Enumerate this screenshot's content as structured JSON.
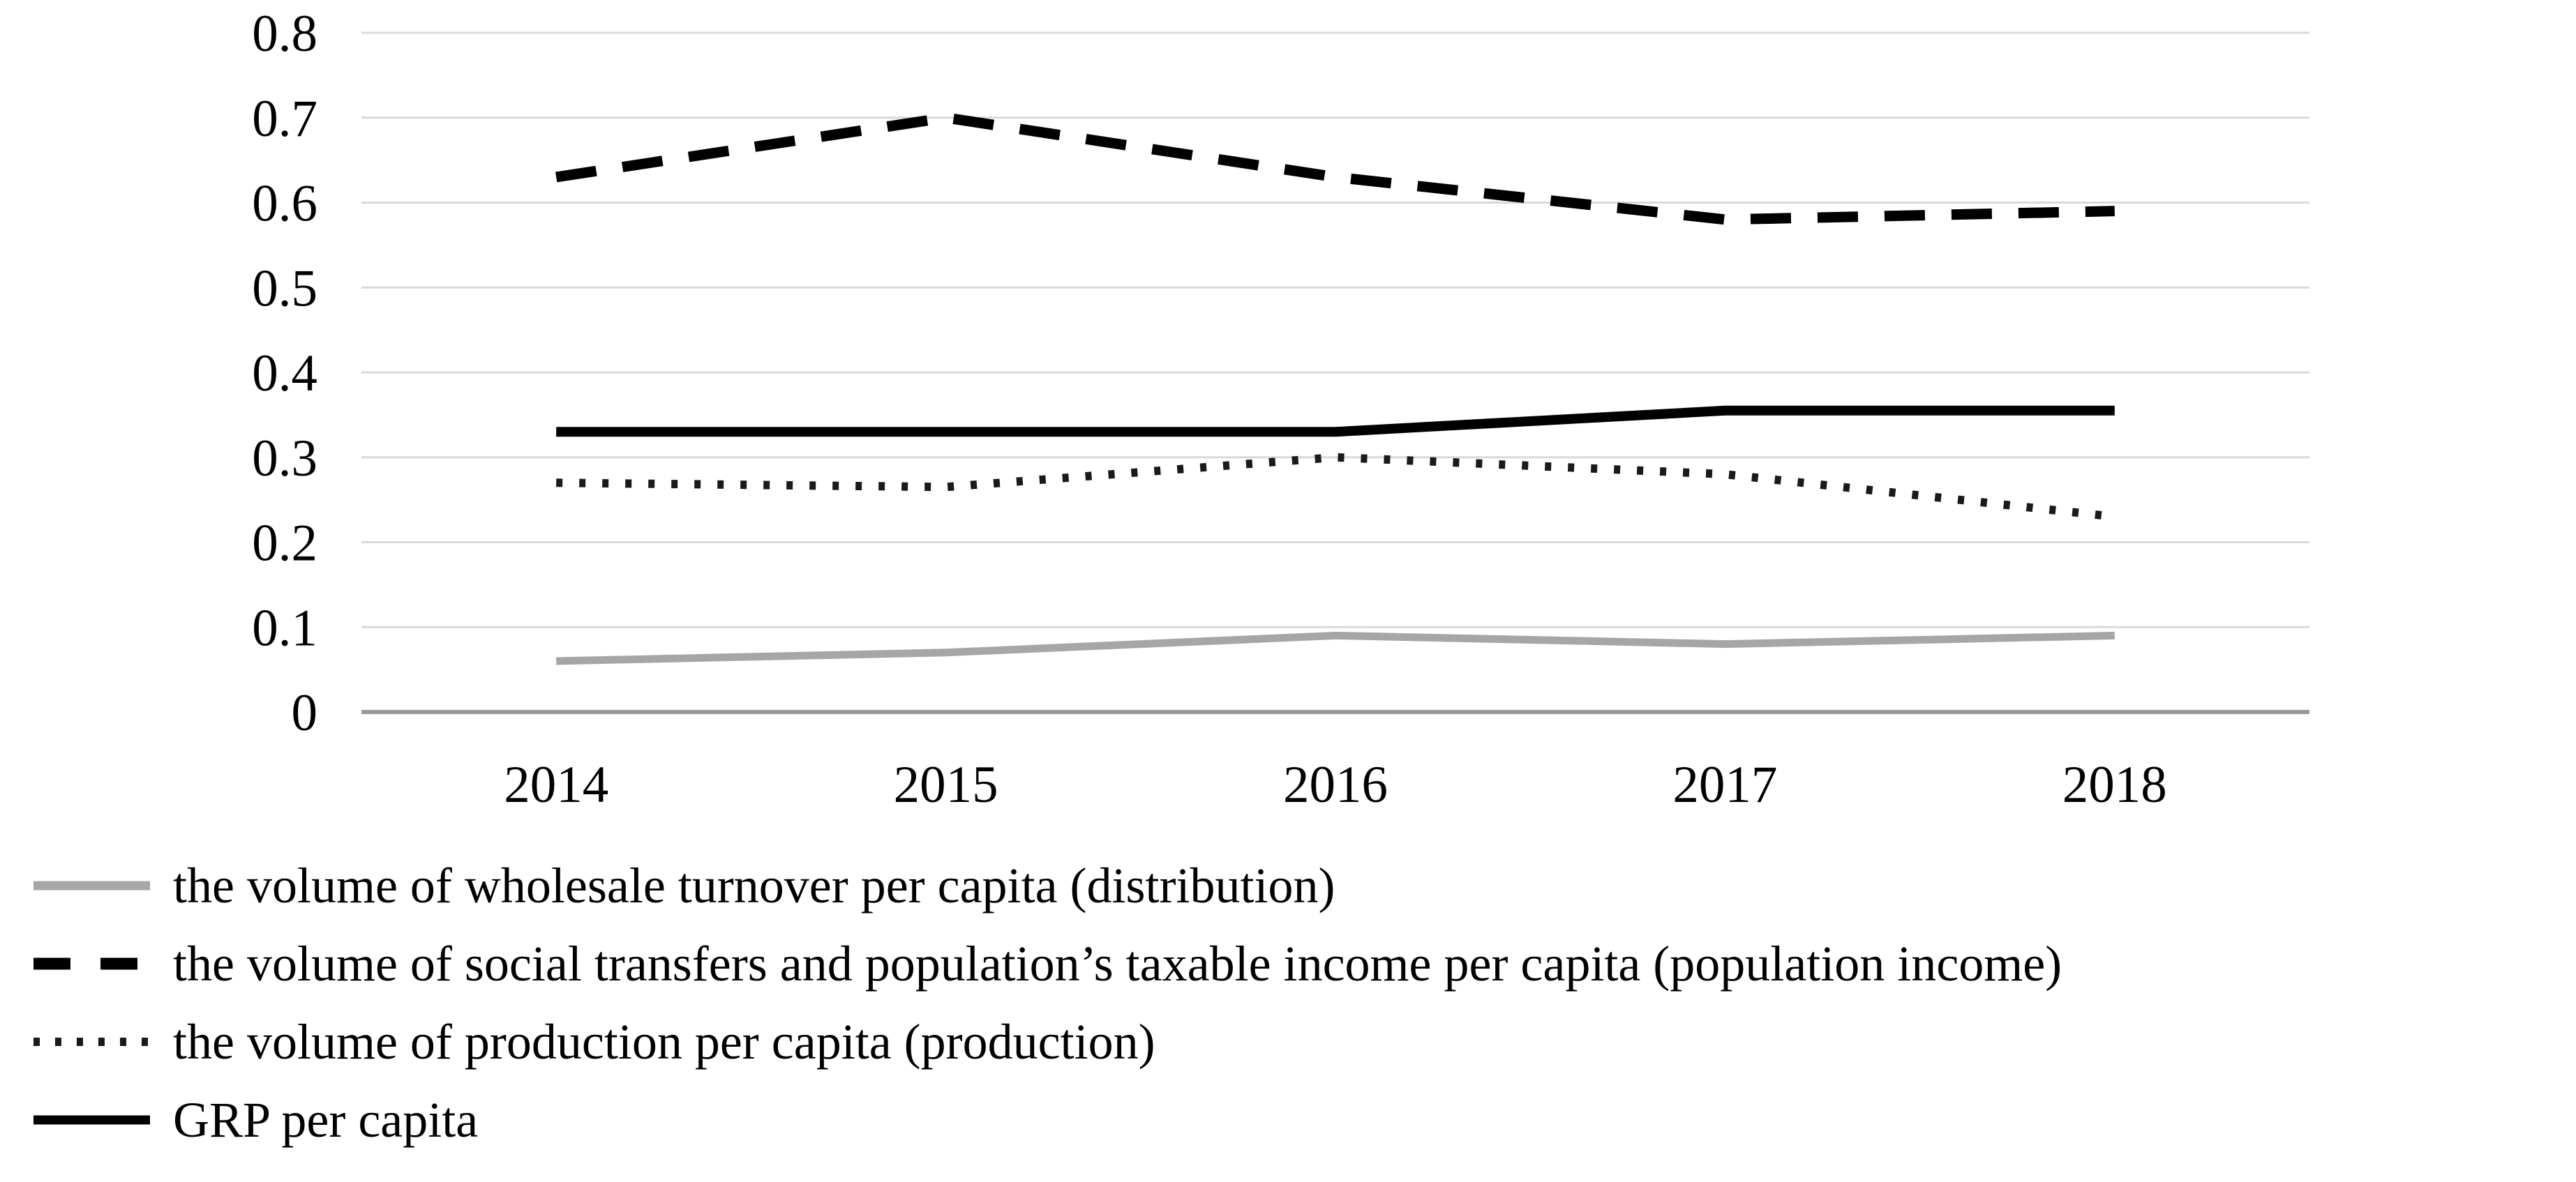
{
  "figure": {
    "background_color": "#ffffff",
    "gridline_color": "#d9d9d9",
    "axis_line_color": "#999999",
    "text_color": "#000000"
  },
  "chart_data": {
    "type": "line",
    "title": "",
    "xlabel": "",
    "ylabel": "",
    "categories": [
      "2014",
      "2015",
      "2016",
      "2017",
      "2018"
    ],
    "series": [
      {
        "name": "the volume of wholesale turnover per capita (distribution)",
        "values": [
          0.06,
          0.07,
          0.09,
          0.08,
          0.09
        ],
        "color": "#a6a6a6",
        "line_style": "solid",
        "stroke_width": 11
      },
      {
        "name": "the volume of social transfers and population’s taxable income per capita (population income)",
        "values": [
          0.63,
          0.7,
          0.63,
          0.58,
          0.59
        ],
        "color": "#000000",
        "line_style": "dashed",
        "stroke_width": 15
      },
      {
        "name": "the volume of production per capita (production)",
        "values": [
          0.27,
          0.265,
          0.3,
          0.28,
          0.23
        ],
        "color": "#1a1a1a",
        "line_style": "dotted",
        "stroke_width": 12
      },
      {
        "name": "GRP per capita",
        "values": [
          0.33,
          0.33,
          0.33,
          0.355,
          0.355
        ],
        "color": "#000000",
        "line_style": "solid",
        "stroke_width": 14
      }
    ],
    "ylim": [
      0,
      0.8
    ],
    "y_ticks": [
      "0.8",
      "0.7",
      "0.6",
      "0.5",
      "0.4",
      "0.3",
      "0.2",
      "0.1",
      "0"
    ],
    "y_tick_values": [
      0.8,
      0.7,
      0.6,
      0.5,
      0.4,
      0.3,
      0.2,
      0.1,
      0
    ],
    "grid": true,
    "legend_position": "bottom-left"
  }
}
